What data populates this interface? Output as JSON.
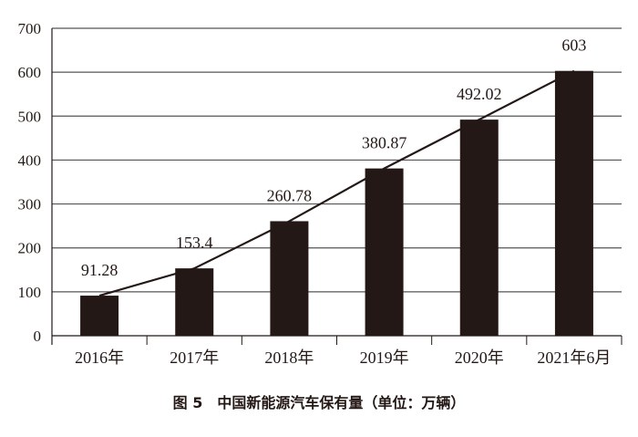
{
  "chart_data": {
    "type": "bar",
    "title": "图 5　中国新能源汽车保有量（单位：万辆）",
    "categories": [
      "2016年",
      "2017年",
      "2018年",
      "2019年",
      "2020年",
      "2021年6月"
    ],
    "values": [
      91.28,
      153.4,
      260.78,
      380.87,
      492.02,
      603
    ],
    "data_labels": [
      "91.28",
      "153.4",
      "260.78",
      "380.87",
      "492.02",
      "603"
    ],
    "overlay_line": true,
    "ylim": [
      0,
      700
    ],
    "yticks": [
      0,
      100,
      200,
      300,
      400,
      500,
      600,
      700
    ],
    "grid": true,
    "bar_color": "#231815",
    "line_color": "#231815",
    "xlabel": "",
    "ylabel": ""
  }
}
